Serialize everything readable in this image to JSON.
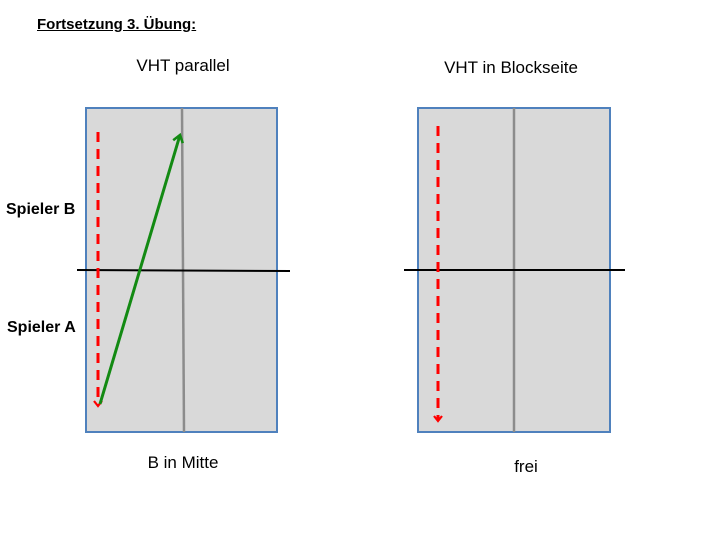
{
  "heading": "Fortsetzung 3. Übung:",
  "players": {
    "b": "Spieler B",
    "a": "Spieler A"
  },
  "left": {
    "title": "VHT parallel",
    "caption": "B in Mitte"
  },
  "right": {
    "title": "VHT in Blockseite",
    "caption": "frei"
  },
  "colors": {
    "table_fill": "#d9d9d9",
    "table_border": "#4f81bd",
    "center_line": "#8c8c8c",
    "net": "#000000",
    "dashed_arrow": "#ff0000",
    "solid_arrow": "#138a13"
  },
  "icons": {
    "dashed_arrow": "red-dashed-arrow-icon",
    "solid_arrow": "green-arrow-icon"
  }
}
